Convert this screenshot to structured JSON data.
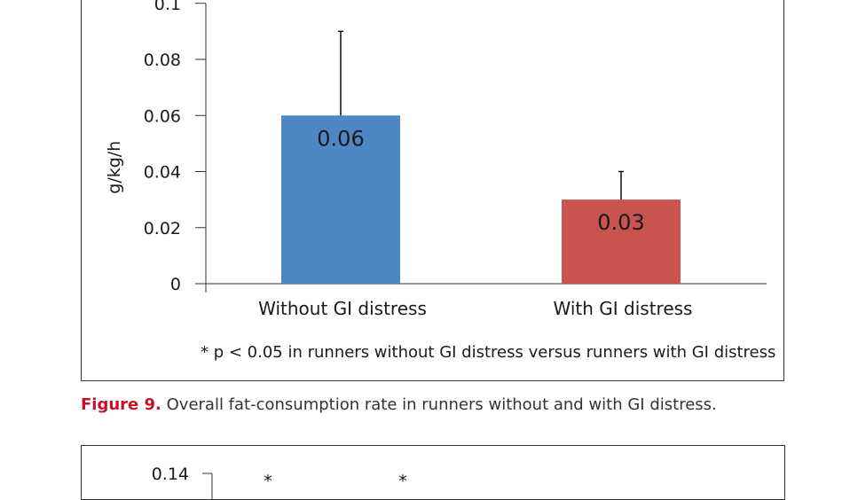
{
  "chart_data": [
    {
      "type": "bar",
      "categories": [
        "Without GI distress",
        "With GI distress"
      ],
      "values": [
        0.06,
        0.03
      ],
      "error_upper": [
        0.09,
        0.04
      ],
      "data_labels": [
        "0.06",
        "0.03"
      ],
      "bar_colors": [
        "#4f86c6",
        "#c9534f"
      ],
      "ylabel": "g/kg/h",
      "ylim": [
        0,
        0.1
      ],
      "yticks": [
        {
          "value": 0,
          "label": "0"
        },
        {
          "value": 0.02,
          "label": "0.02"
        },
        {
          "value": 0.04,
          "label": "0.04"
        },
        {
          "value": 0.06,
          "label": "0.06"
        },
        {
          "value": 0.08,
          "label": "0.08"
        },
        {
          "value": 0.1,
          "label": "0.1"
        }
      ],
      "footnote": "* p < 0.05 in runners without GI distress versus runners with GI distress",
      "grid": false
    }
  ],
  "caption": {
    "number": "Figure 9.",
    "text": "Overall fat-consumption rate in runners without and with GI distress."
  },
  "next_figure": {
    "top_tick_label": "0.14",
    "significance_marks": [
      "*",
      "*"
    ]
  }
}
